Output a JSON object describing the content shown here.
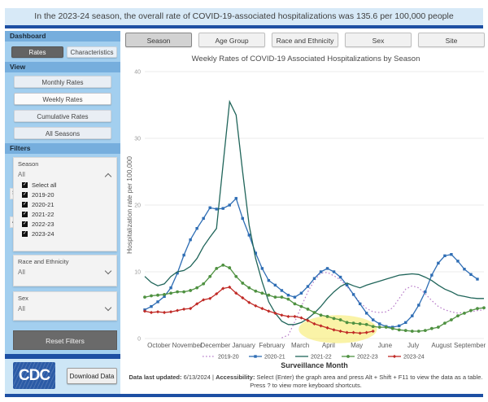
{
  "banner": {
    "text": "In the 2023-24 season, the overall rate of COVID-19-associated hospitalizations was 135.6 per 100,000 people"
  },
  "colors": {
    "banner_bg": "#d7e9f7",
    "accent_bar_blue": "#1d4fa3",
    "sidebar_header_blue": "#76aedd",
    "sidebar_body_blue": "#a3cfef",
    "sidebar_footer_blue": "#cde6f6",
    "highlight_yellow": "#f6e95f",
    "cdc_logo_blue": "#2b5ba6"
  },
  "sidebar": {
    "dashboard_label": "Dashboard",
    "rates_button": "Rates",
    "characteristics_button": "Characteristics",
    "view_label": "View",
    "view_buttons": [
      "Monthly Rates",
      "Weekly Rates",
      "Cumulative Rates",
      "All Seasons"
    ],
    "view_active": "Weekly Rates",
    "filters_label": "Filters",
    "season_filter": {
      "label": "Season",
      "value": "All",
      "expanded": true,
      "options": [
        "Select all",
        "2019-20",
        "2020-21",
        "2021-22",
        "2022-23",
        "2023-24"
      ],
      "checked": [
        true,
        true,
        true,
        true,
        true,
        true
      ]
    },
    "occluded_card_fragments": [
      "S",
      "A"
    ],
    "race_filter": {
      "label": "Race and Ethnicity",
      "value": "All"
    },
    "sex_filter": {
      "label": "Sex",
      "value": "All"
    },
    "reset_button": "Reset Filters",
    "logo_text": "CDC",
    "download_button": "Download Data"
  },
  "tabs": [
    "Season",
    "Age Group",
    "Race and Ethnicity",
    "Sex",
    "Site"
  ],
  "active_tab": "Season",
  "chart_data": {
    "type": "line",
    "title": "Weekly Rates of COVID-19 Associated Hospitalizations by Season",
    "ylabel": "Hospitalization rate per 100,000",
    "xlabel": "Surveillance Month",
    "ylim": [
      0,
      40
    ],
    "yticks": [
      0,
      10,
      20,
      30,
      40
    ],
    "x_unit": "surveillance week 0-52 (October through September)",
    "months": [
      "October",
      "November",
      "December",
      "January",
      "February",
      "March",
      "April",
      "May",
      "June",
      "July",
      "August",
      "September"
    ],
    "legend_position": "bottom",
    "grid": "horizontal",
    "highlight": {
      "shape": "ellipse",
      "color": "#f6e95f",
      "opacity": 0.55,
      "center_week": 29.6,
      "center_rate": 1.4,
      "radius_weeks": 6.0,
      "radius_rate": 2.1,
      "note": "yellow highlight over 2023-24 line April-June"
    },
    "series": [
      {
        "name": "2019-20",
        "color": "#b87cc9",
        "dash": "dotted",
        "marker": "none",
        "start_week": 21,
        "values": [
          0.1,
          0.5,
          2.5,
          4.8,
          7.0,
          8.7,
          9.8,
          9.9,
          9.4,
          8.8,
          7.8,
          6.6,
          5.4,
          4.5,
          4.0,
          3.9,
          4.0,
          4.6,
          6.0,
          7.4,
          7.9,
          7.6,
          6.7,
          5.7,
          4.8,
          4.3,
          4.0,
          3.8,
          3.9,
          4.0,
          4.2,
          4.3
        ]
      },
      {
        "name": "2020-21",
        "color": "#2e6db4",
        "dash": "solid",
        "marker": "square",
        "start_week": 0,
        "values": [
          4.3,
          4.8,
          5.5,
          6.3,
          7.6,
          9.8,
          12.5,
          14.8,
          16.5,
          18.0,
          19.6,
          19.4,
          19.5,
          20.0,
          21.0,
          18.0,
          15.5,
          12.8,
          10.5,
          8.7,
          8.0,
          7.2,
          6.5,
          6.2,
          6.8,
          7.8,
          9.0,
          10.0,
          10.5,
          10.0,
          9.2,
          8.0,
          6.6,
          5.2,
          3.8,
          2.8,
          2.2,
          1.8,
          1.7,
          1.9,
          2.4,
          3.4,
          5.0,
          7.0,
          9.5,
          11.3,
          12.4,
          12.6,
          11.6,
          10.4,
          9.6,
          8.9
        ]
      },
      {
        "name": "2021-22",
        "color": "#20655a",
        "dash": "solid",
        "marker": "none",
        "start_week": 0,
        "values": [
          9.3,
          8.4,
          7.9,
          8.2,
          9.3,
          10.0,
          10.2,
          10.8,
          12.0,
          13.8,
          15.2,
          16.5,
          26.0,
          35.5,
          33.5,
          25.0,
          17.0,
          12.0,
          8.5,
          5.5,
          3.8,
          2.6,
          2.1,
          2.1,
          2.4,
          3.0,
          3.8,
          4.8,
          6.0,
          7.0,
          7.8,
          8.3,
          7.9,
          7.6,
          8.0,
          8.3,
          8.6,
          8.9,
          9.2,
          9.5,
          9.6,
          9.7,
          9.6,
          9.2,
          8.7,
          8.0,
          7.4,
          7.0,
          6.5,
          6.3,
          6.1,
          6.0,
          6.0
        ]
      },
      {
        "name": "2022-23",
        "color": "#4f9141",
        "dash": "solid",
        "marker": "circle",
        "start_week": 0,
        "values": [
          6.2,
          6.4,
          6.5,
          6.6,
          6.8,
          7.0,
          7.0,
          7.2,
          7.6,
          8.2,
          9.3,
          10.5,
          11.0,
          10.6,
          9.3,
          8.3,
          7.6,
          7.1,
          6.8,
          6.5,
          6.2,
          6.2,
          5.9,
          5.2,
          4.8,
          4.4,
          3.9,
          3.5,
          3.3,
          3.0,
          2.8,
          2.4,
          2.3,
          2.2,
          2.1,
          1.8,
          1.7,
          1.7,
          1.5,
          1.3,
          1.2,
          1.1,
          1.1,
          1.2,
          1.5,
          1.7,
          2.3,
          2.8,
          3.4,
          3.8,
          4.2,
          4.5,
          4.6
        ]
      },
      {
        "name": "2023-24",
        "color": "#c02a26",
        "dash": "solid",
        "marker": "diamond",
        "start_week": 0,
        "values": [
          4.1,
          3.9,
          4.0,
          3.9,
          4.0,
          4.2,
          4.4,
          4.5,
          5.2,
          5.8,
          6.0,
          6.7,
          7.5,
          7.7,
          6.8,
          6.1,
          5.4,
          4.9,
          4.5,
          4.1,
          3.8,
          3.5,
          3.3,
          3.3,
          3.1,
          2.7,
          2.2,
          1.9,
          1.6,
          1.3,
          1.1,
          0.9,
          0.9,
          0.8,
          0.9,
          1.1
        ]
      }
    ]
  },
  "footer": {
    "updated_label": "Data last updated:",
    "updated_text": " 6/13/2024 | ",
    "accessibility_label": "Accessibility:",
    "accessibility_text": " Select (Enter) the graph area and press Alt + Shift + F11 to view the data as a table.",
    "line2": "Press ? to view more keyboard shortcuts."
  }
}
